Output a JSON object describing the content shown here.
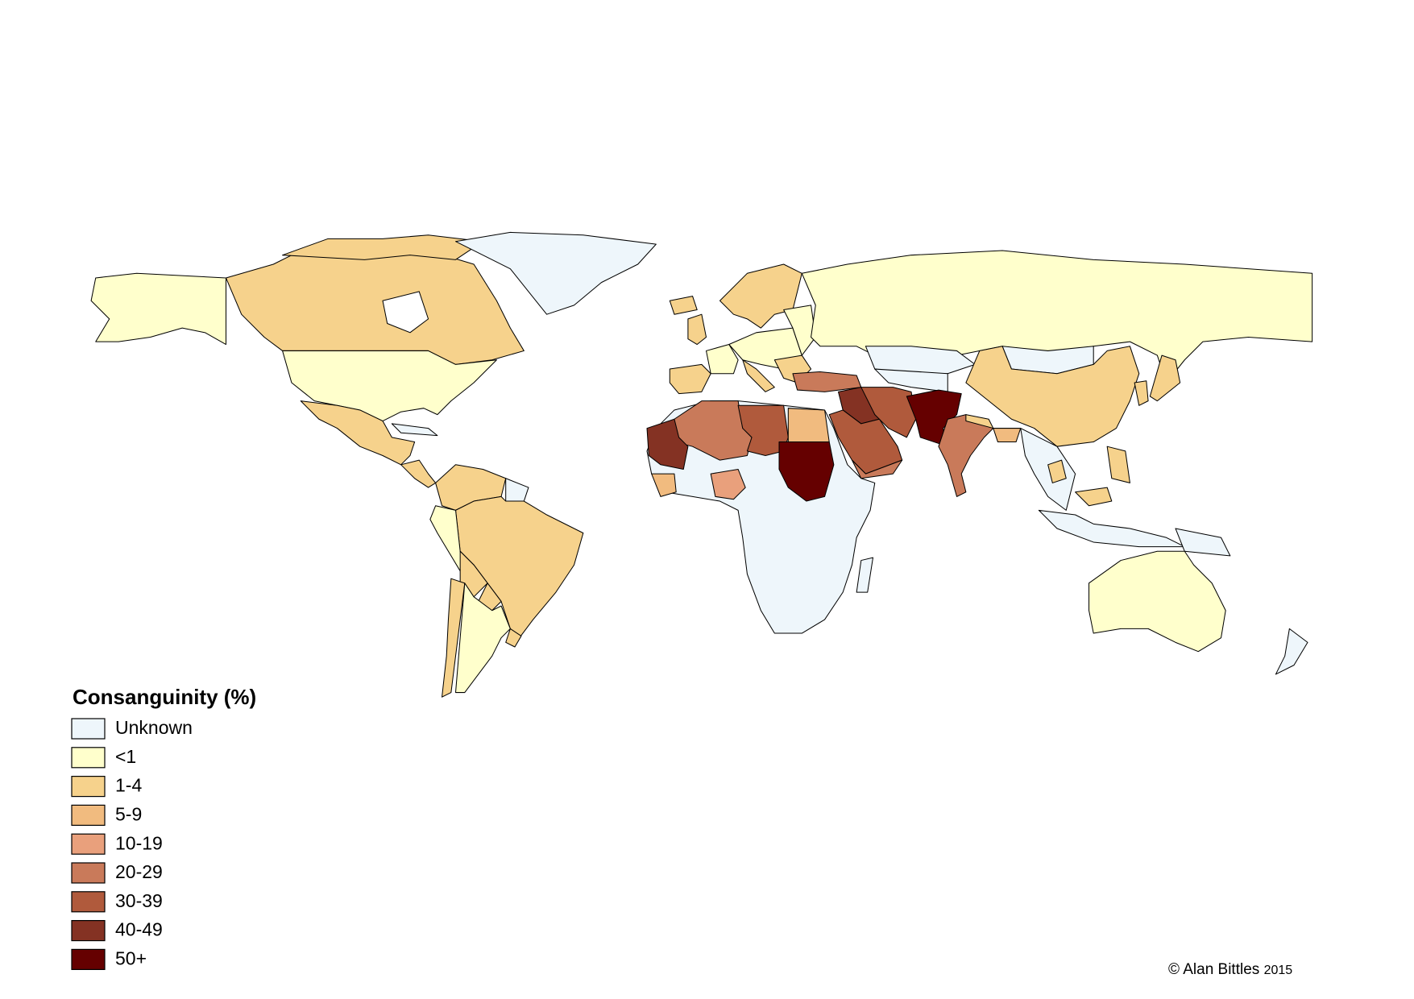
{
  "legend": {
    "title": "Consanguinity (%)",
    "items": [
      {
        "label": "Unknown",
        "color": "#eef6fb"
      },
      {
        "label": "<1",
        "color": "#ffffcc"
      },
      {
        "label": "1-4",
        "color": "#f6d28c"
      },
      {
        "label": "5-9",
        "color": "#f1bb7f"
      },
      {
        "label": "10-19",
        "color": "#e9a07c"
      },
      {
        "label": "20-29",
        "color": "#c97a5a"
      },
      {
        "label": "30-39",
        "color": "#b05a3c"
      },
      {
        "label": "40-49",
        "color": "#843223"
      },
      {
        "label": "50+",
        "color": "#650000"
      }
    ]
  },
  "credit": {
    "text": "© Alan Bittles",
    "year": "2015"
  }
}
